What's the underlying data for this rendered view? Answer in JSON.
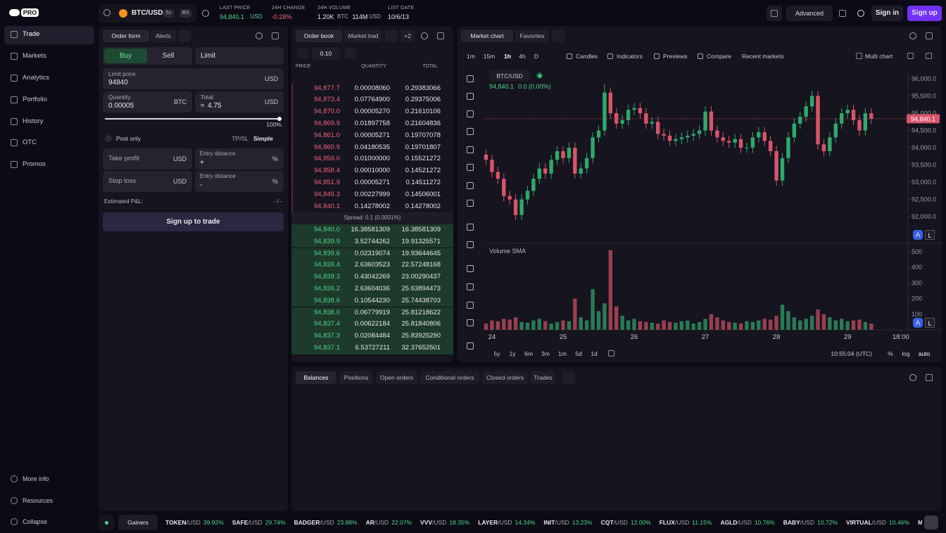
{
  "nav": {
    "logo": "PRO",
    "items": [
      "Trade",
      "Markets",
      "Analytics",
      "Portfolio",
      "History",
      "OTC",
      "Promos"
    ],
    "bottom": [
      "More info",
      "Resources",
      "Collapse"
    ]
  },
  "topbar": {
    "pair": "BTC/USD",
    "leverage": "5x",
    "shortcut": "⌘K",
    "stats": [
      {
        "label": "LAST PRICE",
        "value": "94,840.1",
        "unit": "USD"
      },
      {
        "label": "24H CHANGE",
        "value": "-0.28%"
      },
      {
        "label": "24H VOLUME",
        "value": "1.20K",
        "unit": "BTC",
        "value2": "114M",
        "unit2": "USD"
      },
      {
        "label": "LIST DATE",
        "value": "10/6/13"
      }
    ],
    "mode": "Advanced",
    "sign_in": "Sign in",
    "sign_up": "Sign up"
  },
  "order_form": {
    "tabs": [
      "Order form",
      "Alerts"
    ],
    "side": [
      "Buy",
      "Sell"
    ],
    "type": "Limit",
    "limit_price": {
      "label": "Limit price",
      "value": "94840",
      "unit": "USD"
    },
    "quantity": {
      "label": "Quantity",
      "value": "0.00005",
      "unit": "BTC"
    },
    "total": {
      "label": "Total",
      "approx": "≈",
      "value": "4.75",
      "unit": "USD"
    },
    "slider": "100%",
    "post_only": "Post only",
    "tpsl": {
      "label": "TP/SL",
      "mode": "Simple"
    },
    "take_profit": {
      "label": "Take profit",
      "unit": "USD",
      "distance_label": "Entry distance",
      "sign": "+",
      "distance_unit": "%"
    },
    "stop_loss": {
      "label": "Stop loss",
      "unit": "USD",
      "distance_label": "Entry distance",
      "sign": "-",
      "distance_unit": "%"
    },
    "estimated_pnl": {
      "label": "Estimated P&L:",
      "value": "- / -"
    },
    "submit": "Sign up to trade"
  },
  "order_book": {
    "tabs": [
      "Order book",
      "Market trad"
    ],
    "more": "+2",
    "tick_size": "0.10",
    "headers": [
      "PRICE",
      "QUANTITY",
      "TOTAL"
    ],
    "asks": [
      [
        "94,877.7",
        "0.00008060",
        "0.29383066"
      ],
      [
        "94,873.4",
        "0.07764900",
        "0.29375006"
      ],
      [
        "94,870.0",
        "0.00005270",
        "0.21610106"
      ],
      [
        "94,869.9",
        "0.01897758",
        "0.21604836"
      ],
      [
        "94,861.0",
        "0.00005271",
        "0.19707078"
      ],
      [
        "94,860.9",
        "0.04180535",
        "0.19701807"
      ],
      [
        "94,859.0",
        "0.01000000",
        "0.15521272"
      ],
      [
        "94,858.4",
        "0.00010000",
        "0.14521272"
      ],
      [
        "94,851.9",
        "0.00005271",
        "0.14511272"
      ],
      [
        "94,849.3",
        "0.00227999",
        "0.14506001"
      ],
      [
        "94,840.1",
        "0.14278002",
        "0.14278002"
      ]
    ],
    "spread": "Spread: 0.1 (0.0001%)",
    "bids": [
      [
        "94,840.0",
        "16.38581309",
        "16.38581309"
      ],
      [
        "94,839.9",
        "3.52744262",
        "19.91325571"
      ],
      [
        "94,839.6",
        "0.02319074",
        "19.93644645"
      ],
      [
        "94,839.4",
        "2.63603523",
        "22.57248168"
      ],
      [
        "94,839.3",
        "0.43042269",
        "23.00290437"
      ],
      [
        "94,839.2",
        "2.63604036",
        "25.63894473"
      ],
      [
        "94,838.6",
        "0.10544230",
        "25.74438703"
      ],
      [
        "94,838.0",
        "0.06779919",
        "25.81218622"
      ],
      [
        "94,837.4",
        "0.00622184",
        "25.81840806"
      ],
      [
        "94,837.3",
        "0.02084484",
        "25.83925290"
      ],
      [
        "94,837.1",
        "6.53727211",
        "32.37652501"
      ]
    ]
  },
  "market_chart": {
    "tabs": [
      "Market chart",
      "Favorites"
    ],
    "intervals": [
      "1m",
      "15m",
      "1h",
      "4h",
      "D"
    ],
    "active_interval": 2,
    "tools": [
      "Candles",
      "Indicators",
      "Previews",
      "Compare",
      "Recent markets"
    ],
    "multi_chart": "Multi chart",
    "legend": {
      "symbol": "BTC/USD",
      "price": "94,840.1",
      "change": "0.0 (0.00%)"
    },
    "price_tag": "94,840.1",
    "axis_buttons": [
      "A",
      "L"
    ],
    "ranges": [
      "5y",
      "1y",
      "6m",
      "3m",
      "1m",
      "5d",
      "1d"
    ],
    "clock": "10:55:04 (UTC)",
    "scale_modes": [
      "%",
      "log",
      "auto"
    ]
  },
  "chart_data": [
    {
      "type": "candlestick",
      "up_color": "#2fa86b",
      "down_color": "#d8546a",
      "x": [
        -2,
        0,
        2,
        4,
        6,
        8,
        10,
        12,
        14,
        16,
        18,
        20,
        22,
        24,
        26,
        28,
        30,
        32,
        34,
        36,
        38,
        40,
        42,
        44,
        46,
        48,
        50,
        52,
        54,
        56,
        58,
        60,
        62,
        64,
        66,
        68,
        70,
        72,
        74,
        76,
        78,
        80,
        82,
        84,
        86,
        88,
        90,
        92,
        94,
        96,
        98,
        100,
        102,
        104,
        106,
        108,
        110,
        112,
        114,
        116,
        118,
        120,
        122,
        124,
        126,
        128
      ],
      "open": [
        93800,
        93650,
        93300,
        93100,
        92600,
        92500,
        92050,
        92500,
        92750,
        93100,
        93400,
        93250,
        93650,
        93900,
        93700,
        94000,
        93250,
        93400,
        93700,
        94300,
        94500,
        95600,
        95000,
        94700,
        94800,
        95100,
        95150,
        95000,
        94700,
        94750,
        94400,
        94350,
        94200,
        94250,
        94300,
        94350,
        94400,
        94500,
        95050,
        94500,
        94300,
        94200,
        94150,
        94250,
        94000,
        94000,
        94300,
        94450,
        94200,
        93900,
        93050,
        93700,
        94300,
        94700,
        94900,
        95200,
        95500,
        94100,
        93900,
        94300,
        94700,
        95000,
        95100,
        94800,
        94500,
        95000
      ],
      "high": [
        93950,
        93800,
        93450,
        93250,
        92750,
        92650,
        92650,
        92900,
        93250,
        93550,
        93550,
        93800,
        94050,
        94050,
        94150,
        94150,
        93550,
        93850,
        94450,
        94650,
        95850,
        95750,
        95150,
        94950,
        95250,
        95300,
        95300,
        95150,
        94900,
        94900,
        94550,
        94500,
        94400,
        94450,
        94500,
        94550,
        94650,
        95200,
        95200,
        94650,
        94450,
        94350,
        94400,
        94400,
        94150,
        94450,
        94600,
        94600,
        94350,
        94050,
        93850,
        94450,
        94850,
        95050,
        95350,
        95650,
        95650,
        94250,
        94450,
        94850,
        95150,
        95250,
        95250,
        94950,
        95150,
        95150
      ],
      "low": [
        93500,
        93150,
        92950,
        92450,
        92350,
        91900,
        91900,
        92350,
        92600,
        92950,
        93100,
        93100,
        93500,
        93550,
        93550,
        93100,
        93100,
        93250,
        93550,
        94150,
        94350,
        94850,
        94550,
        94550,
        94650,
        94950,
        94850,
        94550,
        94550,
        94250,
        94200,
        94050,
        94050,
        94100,
        94150,
        94200,
        94250,
        94350,
        94350,
        94150,
        94050,
        94000,
        94000,
        93850,
        93850,
        93850,
        94150,
        94050,
        93750,
        92900,
        92900,
        93550,
        94150,
        94550,
        94750,
        95050,
        93950,
        93750,
        93750,
        94150,
        94550,
        94850,
        94650,
        94350,
        94350,
        94690
      ],
      "close": [
        93650,
        93300,
        93100,
        92600,
        92500,
        92050,
        92500,
        92750,
        93100,
        93400,
        93250,
        93650,
        93900,
        93700,
        94000,
        93250,
        93400,
        93700,
        94300,
        94500,
        95600,
        95000,
        94700,
        94800,
        95100,
        95150,
        95000,
        94700,
        94750,
        94400,
        94350,
        94200,
        94250,
        94300,
        94350,
        94400,
        94500,
        95050,
        94500,
        94300,
        94200,
        94150,
        94250,
        94000,
        94000,
        94300,
        94450,
        94200,
        93900,
        93050,
        93700,
        94300,
        94700,
        94900,
        95200,
        95500,
        94100,
        93900,
        94300,
        94700,
        95000,
        95100,
        94800,
        94500,
        95000,
        94840.1
      ],
      "xlim": [
        -2.6,
        140.4
      ],
      "xticks": [
        {
          "value": 0,
          "label": "24"
        },
        {
          "value": 24,
          "label": "25"
        },
        {
          "value": 48,
          "label": "26"
        },
        {
          "value": 72,
          "label": "27"
        },
        {
          "value": 96,
          "label": "28"
        },
        {
          "value": 120,
          "label": "29"
        },
        {
          "value": 138,
          "label": "18:00"
        }
      ],
      "ylim": [
        91290,
        96245
      ],
      "yticks": [
        {
          "value": 92000,
          "label": "92,000.0"
        },
        {
          "value": 92500,
          "label": "92,500.0"
        },
        {
          "value": 93000,
          "label": "93,000.0"
        },
        {
          "value": 93500,
          "label": "93,500.0"
        },
        {
          "value": 94000,
          "label": "94,000.0"
        },
        {
          "value": 94500,
          "label": "94,500.0"
        },
        {
          "value": 95000,
          "label": "95,000.0"
        },
        {
          "value": 95500,
          "label": "95,500.0"
        },
        {
          "value": 96000,
          "label": "96,000.0"
        }
      ],
      "grid": false
    },
    {
      "type": "bar",
      "title": "Volume SMA",
      "values": [
        40,
        60,
        55,
        70,
        65,
        80,
        50,
        45,
        60,
        70,
        55,
        40,
        50,
        60,
        55,
        200,
        80,
        60,
        260,
        120,
        170,
        510,
        150,
        90,
        60,
        70,
        55,
        50,
        45,
        40,
        60,
        50,
        45,
        55,
        60,
        40,
        50,
        70,
        100,
        80,
        60,
        50,
        45,
        40,
        55,
        50,
        60,
        70,
        65,
        90,
        160,
        120,
        80,
        60,
        70,
        90,
        130,
        100,
        80,
        60,
        70,
        55,
        60,
        65,
        50,
        40
      ],
      "ylim": [
        0,
        536
      ],
      "yticks": [
        100,
        200,
        300,
        400,
        500
      ],
      "grid": false
    }
  ],
  "bottom_panel": {
    "tabs": [
      "Balances",
      "Positions",
      "Open orders",
      "Conditional orders",
      "Closed orders",
      "Trades"
    ]
  },
  "ticker": {
    "label": "Gainers",
    "items": [
      {
        "base": "TOKEN",
        "quote": "/USD",
        "change": "39.92%"
      },
      {
        "base": "SAFE",
        "quote": "/USD",
        "change": "29.74%"
      },
      {
        "base": "BADGER",
        "quote": "/USD",
        "change": "23.88%"
      },
      {
        "base": "AR",
        "quote": "/USD",
        "change": "22.07%"
      },
      {
        "base": "VVV",
        "quote": "/USD",
        "change": "18.35%"
      },
      {
        "base": "LAYER",
        "quote": "/USD",
        "change": "14.34%"
      },
      {
        "base": "INIT",
        "quote": "/USD",
        "change": "13.23%"
      },
      {
        "base": "CQT",
        "quote": "/USD",
        "change": "12.00%"
      },
      {
        "base": "FLUX",
        "quote": "/USD",
        "change": "11.15%"
      },
      {
        "base": "AGLD",
        "quote": "/USD",
        "change": "10.76%"
      },
      {
        "base": "BABY",
        "quote": "/USD",
        "change": "10.72%"
      },
      {
        "base": "VIRTUAL",
        "quote": "/USD",
        "change": "10.46%"
      },
      {
        "base": "ME/U"
      }
    ]
  }
}
